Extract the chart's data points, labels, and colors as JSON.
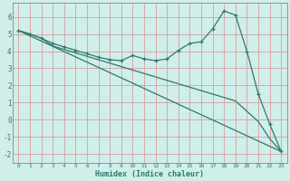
{
  "xlabel": "Humidex (Indice chaleur)",
  "ylabel": "",
  "bg_color": "#d0eeea",
  "grid_color": "#d4a0a0",
  "line_color": "#2d7a6e",
  "xlim": [
    -0.5,
    23.5
  ],
  "ylim": [
    -2.5,
    6.8
  ],
  "xticks": [
    0,
    1,
    2,
    3,
    4,
    5,
    6,
    7,
    8,
    9,
    10,
    11,
    12,
    13,
    14,
    15,
    16,
    17,
    18,
    19,
    20,
    21,
    22,
    23
  ],
  "yticks": [
    -2,
    -1,
    0,
    1,
    2,
    3,
    4,
    5,
    6
  ],
  "series1_x": [
    0,
    1,
    2,
    3,
    4,
    5,
    6,
    7,
    8,
    9,
    10,
    11,
    12,
    13,
    14,
    15,
    16,
    17,
    18,
    19,
    20,
    21,
    22,
    23
  ],
  "series1_y": [
    5.2,
    5.0,
    4.75,
    4.45,
    4.25,
    4.05,
    3.85,
    3.65,
    3.5,
    3.45,
    3.75,
    3.55,
    3.45,
    3.55,
    4.05,
    4.45,
    4.55,
    5.3,
    6.35,
    6.1,
    4.0,
    1.5,
    -0.25,
    -1.85
  ],
  "series2_x": [
    0,
    1,
    2,
    3,
    4,
    5,
    6,
    7,
    8,
    9,
    10,
    11,
    12,
    13,
    14,
    15,
    16,
    17,
    18,
    19,
    20,
    21,
    22,
    23
  ],
  "series2_y": [
    5.2,
    5.0,
    4.75,
    4.3,
    4.1,
    3.9,
    3.7,
    3.5,
    3.3,
    3.1,
    2.9,
    2.7,
    2.5,
    2.3,
    2.1,
    1.9,
    1.7,
    1.5,
    1.3,
    1.1,
    0.5,
    -0.1,
    -1.1,
    -1.85
  ],
  "series3_x": [
    0,
    23
  ],
  "series3_y": [
    5.2,
    -1.85
  ]
}
